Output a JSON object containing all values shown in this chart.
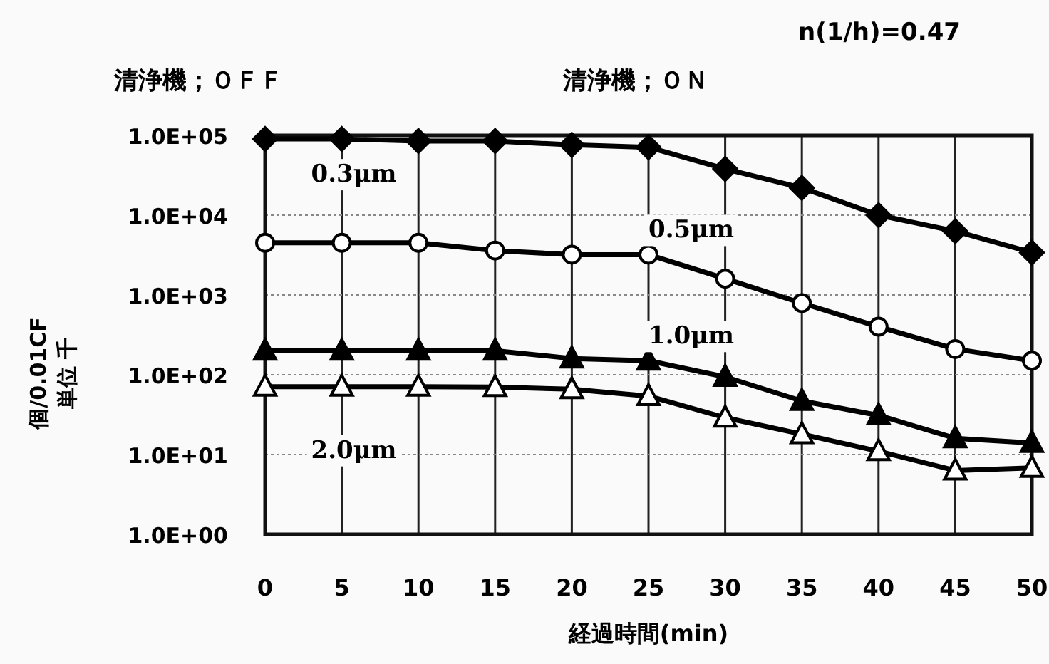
{
  "chart_data": {
    "type": "line",
    "xlabel": "経過時間(min)",
    "ylabel": "個/0.01CF 単位 千",
    "annotations": [
      "n(1/h)=0.47",
      "清浄機；ＯＦＦ",
      "清浄機；ＯＮ"
    ],
    "x": [
      0,
      5,
      10,
      15,
      20,
      25,
      30,
      35,
      40,
      45,
      50
    ],
    "series": [
      {
        "name": "0.3μm",
        "color": "#000000",
        "marker": "diamond",
        "values": [
          90000,
          90000,
          85000,
          85000,
          76000,
          71000,
          38000,
          22000,
          10000,
          6300,
          3400
        ]
      },
      {
        "name": "0.5μm",
        "color": "#000000",
        "marker": "circle",
        "values": [
          4500,
          4500,
          4500,
          3600,
          3200,
          3200,
          1600,
          790,
          400,
          210,
          150
        ]
      },
      {
        "name": "1.0μm",
        "color": "#000000",
        "marker": "triangle",
        "values": [
          200,
          200,
          200,
          200,
          160,
          150,
          94,
          47,
          31,
          16,
          14
        ]
      },
      {
        "name": "2.0μm",
        "color": "#000000",
        "marker": "triangle",
        "values": [
          71,
          71,
          71,
          70,
          66,
          54,
          29,
          18,
          11,
          6.3,
          6.8
        ]
      }
    ],
    "log": "y",
    "xlim": [
      0,
      50
    ],
    "ylim": [
      1,
      100000
    ],
    "xticks": [
      0,
      5,
      10,
      15,
      20,
      25,
      30,
      35,
      40,
      45,
      50
    ],
    "yticks": [
      {
        "value": 1,
        "label": "1.0E+00"
      },
      {
        "value": 10,
        "label": "1.0E+01"
      },
      {
        "value": 100,
        "label": "1.0E+02"
      },
      {
        "value": 1000,
        "label": "1.0E+03"
      },
      {
        "value": 10000,
        "label": "1.0E+04"
      },
      {
        "value": 100000,
        "label": "1.0E+05"
      }
    ],
    "grid": true,
    "line_style": "solid"
  }
}
